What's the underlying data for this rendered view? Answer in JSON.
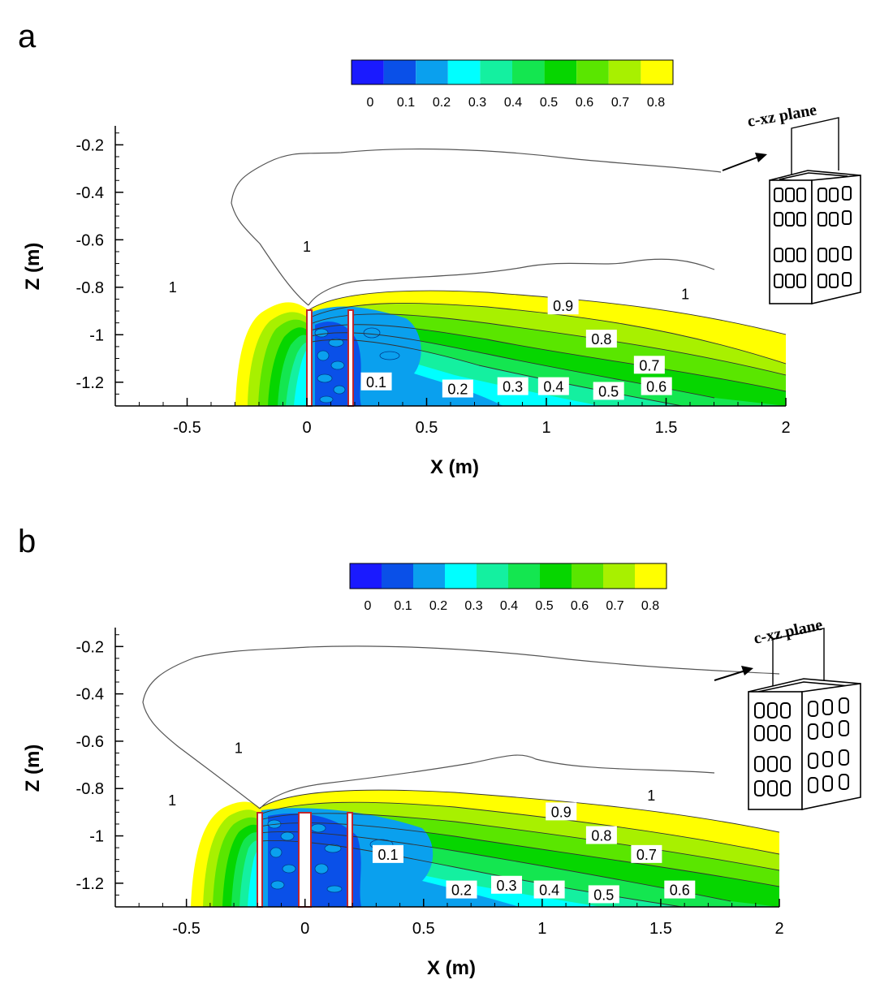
{
  "chart_data": [
    {
      "panel": "a",
      "type": "contour",
      "xlabel": "X (m)",
      "ylabel": "Z (m)",
      "xlim": [
        -0.8,
        2.0
      ],
      "ylim": [
        -1.3,
        -0.12
      ],
      "xticks": [
        -0.5,
        0,
        0.5,
        1,
        1.5,
        2
      ],
      "yticks": [
        -0.2,
        -0.4,
        -0.6,
        -0.8,
        -1,
        -1.2
      ],
      "colorbar": {
        "levels": [
          "0",
          "0.1",
          "0.2",
          "0.3",
          "0.4",
          "0.5",
          "0.6",
          "0.7",
          "0.8"
        ],
        "colors": [
          "#1a1aff",
          "#0a50e8",
          "#0aa0ee",
          "#00ffff",
          "#14f0a0",
          "#14e650",
          "#06d600",
          "#5ae600",
          "#a8f000",
          "#ffff00"
        ]
      },
      "contour_labels": [
        {
          "text": "1",
          "x": 0.0,
          "y": -0.63
        },
        {
          "text": "1",
          "x": -0.56,
          "y": -0.8
        },
        {
          "text": "1",
          "x": 1.58,
          "y": -0.83
        },
        {
          "text": "0.9",
          "x": 1.07,
          "y": -0.88
        },
        {
          "text": "0.8",
          "x": 1.23,
          "y": -1.02
        },
        {
          "text": "0.7",
          "x": 1.43,
          "y": -1.13
        },
        {
          "text": "0.6",
          "x": 1.46,
          "y": -1.22
        },
        {
          "text": "0.5",
          "x": 1.26,
          "y": -1.24
        },
        {
          "text": "0.4",
          "x": 1.03,
          "y": -1.22
        },
        {
          "text": "0.3",
          "x": 0.86,
          "y": -1.22
        },
        {
          "text": "0.2",
          "x": 0.63,
          "y": -1.23
        },
        {
          "text": "0.1",
          "x": 0.29,
          "y": -1.2
        }
      ],
      "walls_x": [
        0.0,
        0.19
      ],
      "inset_label": "c-xz plane"
    },
    {
      "panel": "b",
      "type": "contour",
      "xlabel": "X (m)",
      "ylabel": "Z (m)",
      "xlim": [
        -0.8,
        2.0
      ],
      "ylim": [
        -1.3,
        -0.12
      ],
      "xticks": [
        -0.5,
        0,
        0.5,
        1,
        1.5,
        2
      ],
      "yticks": [
        -0.2,
        -0.4,
        -0.6,
        -0.8,
        -1,
        -1.2
      ],
      "colorbar": {
        "levels": [
          "0",
          "0.1",
          "0.2",
          "0.3",
          "0.4",
          "0.5",
          "0.6",
          "0.7",
          "0.8"
        ],
        "colors": [
          "#1a1aff",
          "#0a50e8",
          "#0aa0ee",
          "#00ffff",
          "#14f0a0",
          "#14e650",
          "#06d600",
          "#5ae600",
          "#a8f000",
          "#ffff00"
        ]
      },
      "contour_labels": [
        {
          "text": "1",
          "x": -0.28,
          "y": -0.63
        },
        {
          "text": "1",
          "x": -0.56,
          "y": -0.85
        },
        {
          "text": "1",
          "x": 1.46,
          "y": -0.83
        },
        {
          "text": "0.9",
          "x": 1.08,
          "y": -0.9
        },
        {
          "text": "0.8",
          "x": 1.25,
          "y": -1.0
        },
        {
          "text": "0.7",
          "x": 1.44,
          "y": -1.08
        },
        {
          "text": "0.6",
          "x": 1.58,
          "y": -1.23
        },
        {
          "text": "0.5",
          "x": 1.26,
          "y": -1.25
        },
        {
          "text": "0.4",
          "x": 1.03,
          "y": -1.23
        },
        {
          "text": "0.3",
          "x": 0.85,
          "y": -1.21
        },
        {
          "text": "0.2",
          "x": 0.66,
          "y": -1.23
        },
        {
          "text": "0.1",
          "x": 0.35,
          "y": -1.08
        }
      ],
      "walls_x": [
        -0.19,
        0.0,
        0.19
      ],
      "inset_label": "c-xz plane"
    }
  ]
}
